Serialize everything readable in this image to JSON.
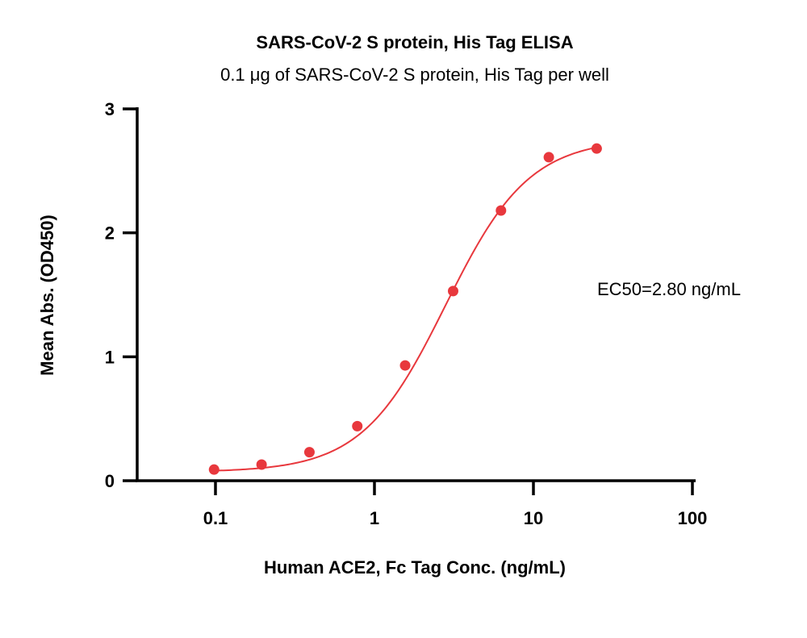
{
  "chart_data": {
    "type": "scatter",
    "title": "SARS-CoV-2 S protein, His Tag ELISA",
    "subtitle": "0.1 μg of SARS-CoV-2 S protein, His Tag per well",
    "xlabel": "Human ACE2, Fc Tag Conc. (ng/mL)",
    "ylabel": "Mean Abs. (OD450)",
    "x_scale": "log",
    "xlim": [
      0.03,
      100
    ],
    "ylim": [
      0,
      3
    ],
    "x_ticks": [
      0.1,
      1,
      10,
      100
    ],
    "x_tick_labels": [
      "0.1",
      "1",
      "10",
      "100"
    ],
    "y_ticks": [
      0,
      1,
      2,
      3
    ],
    "y_tick_labels": [
      "0",
      "1",
      "2",
      "3"
    ],
    "grid": false,
    "series": [
      {
        "color": "#e8383d",
        "x": [
          0.098,
          0.195,
          0.39,
          0.78,
          1.56,
          3.125,
          6.25,
          12.5,
          25
        ],
        "y": [
          0.09,
          0.13,
          0.23,
          0.44,
          0.93,
          1.53,
          2.18,
          2.61,
          2.68
        ]
      }
    ],
    "fit": {
      "model": "4PL",
      "bottom": 0.07,
      "top": 2.76,
      "ec50": 2.8,
      "hill": 1.65,
      "x_range": [
        0.098,
        25
      ]
    },
    "annotation": "EC50=2.80 ng/mL"
  }
}
